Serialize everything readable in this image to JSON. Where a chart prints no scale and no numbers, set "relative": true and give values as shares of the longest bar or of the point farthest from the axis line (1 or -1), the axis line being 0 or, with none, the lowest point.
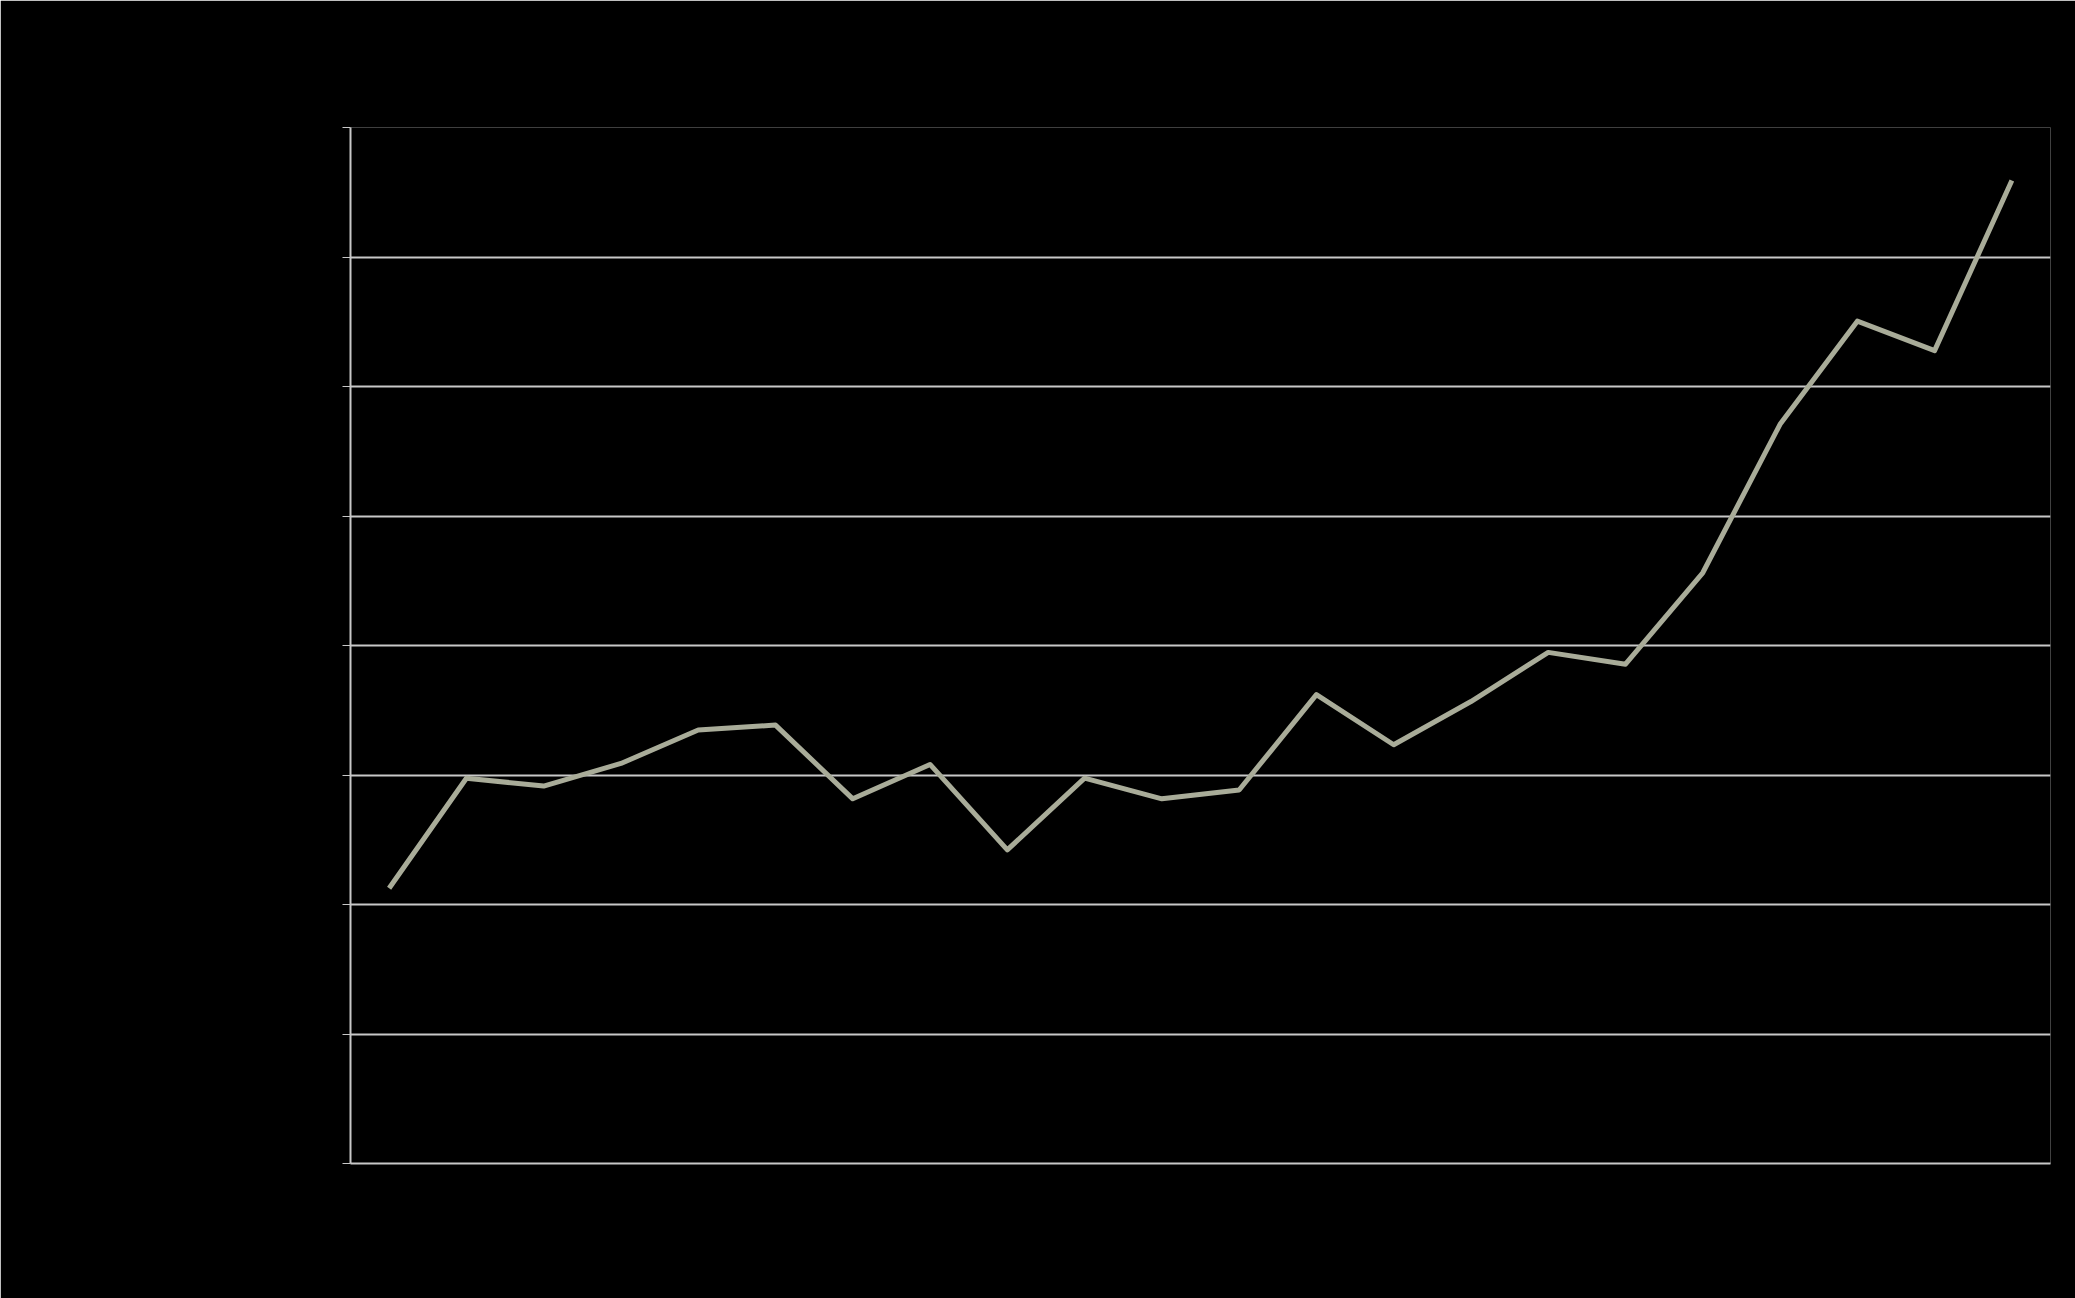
{
  "chart_data": {
    "type": "line",
    "relative": true,
    "categories": [
      null,
      null,
      null,
      null,
      null,
      null,
      null,
      null,
      null,
      null,
      null,
      null,
      null,
      null,
      null,
      null,
      null,
      null,
      null,
      null,
      null,
      null
    ],
    "series": [
      {
        "color": "#a9ac99",
        "values": [
          0.28,
          0.392,
          0.384,
          0.407,
          0.441,
          0.446,
          0.371,
          0.406,
          0.319,
          0.392,
          0.371,
          0.38,
          0.477,
          0.426,
          0.47,
          0.52,
          0.508,
          0.601,
          0.752,
          0.857,
          0.827,
          1
        ]
      }
    ],
    "grid": "y",
    "marker": "none",
    "line_style": "solid"
  }
}
